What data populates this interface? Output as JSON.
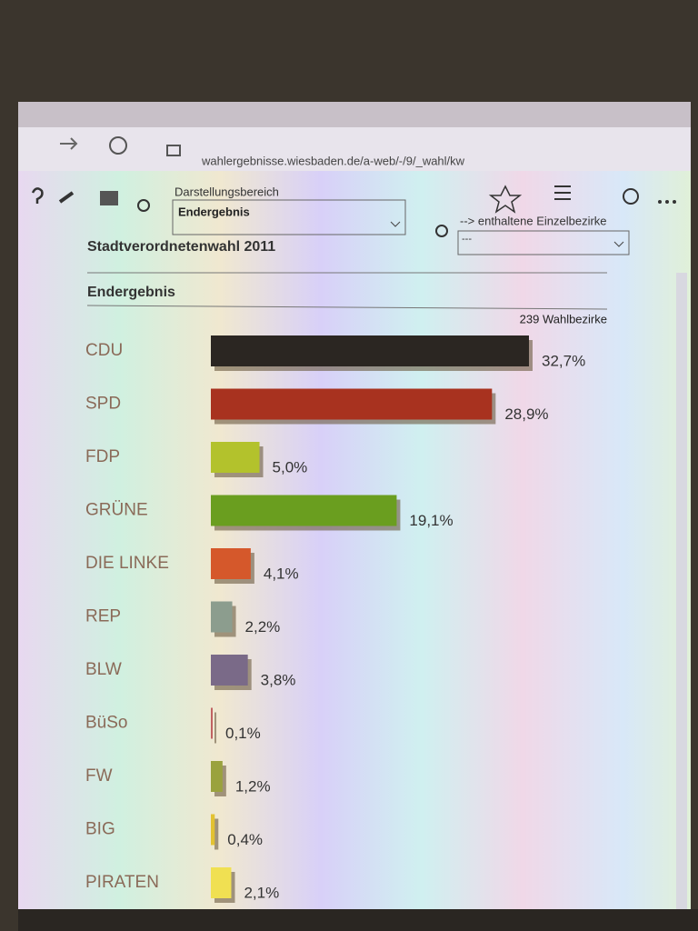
{
  "browser": {
    "url": "wahlergebnisse.wiesbaden.de/a-web/-/9/_wahl/kw"
  },
  "toolbar": {
    "range_label": "Darstellungsbereich",
    "range_value": "Endergebnis",
    "districts_label": "--> enthaltene Einzelbezirke",
    "districts_value": "---"
  },
  "page": {
    "title": "Stadtverordnetenwahl 2011",
    "subtitle": "Endergebnis",
    "districts": "239 Wahlbezirke"
  },
  "chart_data": {
    "type": "hbar",
    "categories": [
      "CDU",
      "SPD",
      "FDP",
      "GRÜNE",
      "DIE LINKE",
      "REP",
      "BLW",
      "BüSo",
      "FW",
      "BIG",
      "PIRATEN"
    ],
    "values": [
      32.7,
      28.9,
      5.0,
      19.1,
      4.1,
      2.2,
      3.8,
      0.1,
      1.2,
      0.4,
      2.1
    ],
    "value_labels": [
      "32,7%",
      "28,9%",
      "5,0%",
      "19,1%",
      "4,1%",
      "2,2%",
      "3,8%",
      "0,1%",
      "1,2%",
      "0,4%",
      "2,1%"
    ],
    "colors": [
      "#2b2622",
      "#a8321f",
      "#b3c22c",
      "#6a9e1f",
      "#d5582b",
      "#8c9d8e",
      "#7a6a88",
      "#c06262",
      "#9aa23e",
      "#e2c232",
      "#f0e052"
    ]
  }
}
